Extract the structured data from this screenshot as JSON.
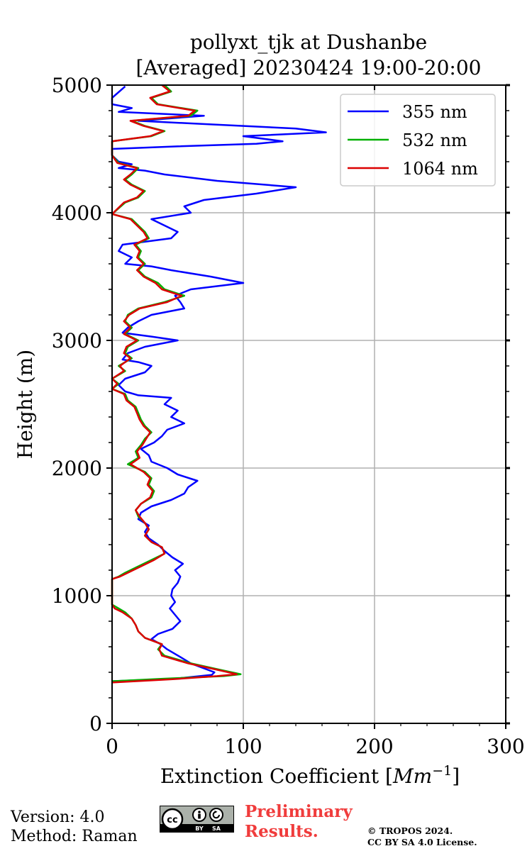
{
  "header": {
    "title_line1": "pollyxt_tjk at Dushanbe",
    "title_line2": "[Averaged] 20230424 19:00-20:00"
  },
  "footer": {
    "version": "Version: 4.0",
    "method": "Method: Raman",
    "preliminary_line1": "Preliminary",
    "preliminary_line2": "Results.",
    "copyright_line1": "© TROPOS 2024.",
    "copyright_line2": "CC BY SA 4.0 License.",
    "badge": {
      "cc": "cc",
      "by": "BY",
      "sa": "SA"
    }
  },
  "chart_data": {
    "type": "line",
    "title": "pollyxt_tjk at Dushanbe [Averaged] 20230424 19:00-20:00",
    "xlabel": "Extinction Coefficient",
    "xlabel_unit": "Mm",
    "xlabel_exp": "−1",
    "ylabel": "Height (m)",
    "xlim": [
      0,
      300
    ],
    "ylim": [
      0,
      5000
    ],
    "xticks": [
      0,
      100,
      200,
      300
    ],
    "yticks": [
      0,
      1000,
      2000,
      3000,
      4000,
      5000
    ],
    "grid": true,
    "legend_position": "top-right",
    "series": [
      {
        "name": "355 nm",
        "color": "#0000ff",
        "points": [
          [
            0,
            330
          ],
          [
            48,
            350
          ],
          [
            76,
            380
          ],
          [
            78,
            400
          ],
          [
            60,
            470
          ],
          [
            52,
            520
          ],
          [
            42,
            580
          ],
          [
            37,
            620
          ],
          [
            30,
            660
          ],
          [
            35,
            700
          ],
          [
            46,
            740
          ],
          [
            52,
            800
          ],
          [
            48,
            850
          ],
          [
            44,
            900
          ],
          [
            48,
            950
          ],
          [
            45,
            1000
          ],
          [
            46,
            1050
          ],
          [
            50,
            1100
          ],
          [
            52,
            1150
          ],
          [
            48,
            1200
          ],
          [
            54,
            1250
          ],
          [
            46,
            1300
          ],
          [
            40,
            1350
          ],
          [
            35,
            1400
          ],
          [
            28,
            1450
          ],
          [
            25,
            1500
          ],
          [
            28,
            1550
          ],
          [
            20,
            1600
          ],
          [
            22,
            1650
          ],
          [
            30,
            1700
          ],
          [
            45,
            1750
          ],
          [
            55,
            1800
          ],
          [
            58,
            1850
          ],
          [
            65,
            1900
          ],
          [
            50,
            1950
          ],
          [
            42,
            2000
          ],
          [
            30,
            2050
          ],
          [
            28,
            2100
          ],
          [
            22,
            2150
          ],
          [
            32,
            2200
          ],
          [
            38,
            2250
          ],
          [
            42,
            2300
          ],
          [
            55,
            2350
          ],
          [
            45,
            2400
          ],
          [
            50,
            2450
          ],
          [
            40,
            2500
          ],
          [
            45,
            2550
          ],
          [
            20,
            2570
          ],
          [
            10,
            2600
          ],
          [
            5,
            2650
          ],
          [
            10,
            2700
          ],
          [
            25,
            2750
          ],
          [
            30,
            2800
          ],
          [
            20,
            2830
          ],
          [
            8,
            2850
          ],
          [
            12,
            2900
          ],
          [
            25,
            2950
          ],
          [
            50,
            3000
          ],
          [
            30,
            3030
          ],
          [
            8,
            3060
          ],
          [
            12,
            3100
          ],
          [
            20,
            3150
          ],
          [
            30,
            3200
          ],
          [
            55,
            3250
          ],
          [
            52,
            3300
          ],
          [
            48,
            3350
          ],
          [
            60,
            3400
          ],
          [
            100,
            3450
          ],
          [
            75,
            3500
          ],
          [
            45,
            3550
          ],
          [
            30,
            3580
          ],
          [
            10,
            3600
          ],
          [
            15,
            3650
          ],
          [
            5,
            3700
          ],
          [
            8,
            3750
          ],
          [
            45,
            3800
          ],
          [
            50,
            3850
          ],
          [
            40,
            3900
          ],
          [
            30,
            3950
          ],
          [
            60,
            4000
          ],
          [
            55,
            4050
          ],
          [
            70,
            4100
          ],
          [
            110,
            4150
          ],
          [
            140,
            4200
          ],
          [
            80,
            4250
          ],
          [
            40,
            4300
          ],
          [
            25,
            4330
          ],
          [
            5,
            4350
          ],
          [
            15,
            4380
          ],
          [
            5,
            4400
          ],
          [
            0,
            4450
          ],
          [
            0,
            4500
          ],
          [
            50,
            4520
          ],
          [
            110,
            4540
          ],
          [
            130,
            4560
          ],
          [
            100,
            4600
          ],
          [
            163,
            4630
          ],
          [
            140,
            4660
          ],
          [
            60,
            4700
          ],
          [
            20,
            4720
          ],
          [
            70,
            4760
          ],
          [
            5,
            4790
          ],
          [
            15,
            4820
          ],
          [
            0,
            4850
          ],
          [
            0,
            4900
          ],
          [
            10,
            4990
          ]
        ]
      },
      {
        "name": "532 nm",
        "color": "#00b000",
        "points": [
          [
            0,
            330
          ],
          [
            40,
            350
          ],
          [
            85,
            370
          ],
          [
            98,
            385
          ],
          [
            82,
            420
          ],
          [
            60,
            470
          ],
          [
            40,
            530
          ],
          [
            35,
            580
          ],
          [
            38,
            620
          ],
          [
            25,
            670
          ],
          [
            20,
            720
          ],
          [
            18,
            770
          ],
          [
            15,
            820
          ],
          [
            10,
            870
          ],
          [
            5,
            900
          ],
          [
            0,
            930
          ],
          [
            0,
            1000
          ],
          [
            0,
            1130
          ],
          [
            5,
            1150
          ],
          [
            10,
            1180
          ],
          [
            20,
            1230
          ],
          [
            30,
            1280
          ],
          [
            40,
            1330
          ],
          [
            38,
            1380
          ],
          [
            30,
            1420
          ],
          [
            25,
            1470
          ],
          [
            28,
            1520
          ],
          [
            25,
            1570
          ],
          [
            20,
            1620
          ],
          [
            18,
            1670
          ],
          [
            22,
            1720
          ],
          [
            30,
            1770
          ],
          [
            32,
            1820
          ],
          [
            28,
            1870
          ],
          [
            30,
            1920
          ],
          [
            25,
            1970
          ],
          [
            12,
            2030
          ],
          [
            20,
            2080
          ],
          [
            18,
            2130
          ],
          [
            22,
            2180
          ],
          [
            25,
            2230
          ],
          [
            30,
            2280
          ],
          [
            25,
            2330
          ],
          [
            22,
            2380
          ],
          [
            20,
            2430
          ],
          [
            18,
            2480
          ],
          [
            12,
            2530
          ],
          [
            10,
            2580
          ],
          [
            0,
            2620
          ],
          [
            5,
            2660
          ],
          [
            0,
            2700
          ],
          [
            10,
            2760
          ],
          [
            5,
            2800
          ],
          [
            15,
            2860
          ],
          [
            10,
            2900
          ],
          [
            12,
            2950
          ],
          [
            20,
            3000
          ],
          [
            10,
            3050
          ],
          [
            15,
            3100
          ],
          [
            10,
            3150
          ],
          [
            12,
            3200
          ],
          [
            20,
            3250
          ],
          [
            40,
            3300
          ],
          [
            55,
            3350
          ],
          [
            40,
            3400
          ],
          [
            35,
            3450
          ],
          [
            25,
            3500
          ],
          [
            20,
            3550
          ],
          [
            25,
            3600
          ],
          [
            20,
            3650
          ],
          [
            22,
            3700
          ],
          [
            18,
            3750
          ],
          [
            28,
            3800
          ],
          [
            25,
            3850
          ],
          [
            20,
            3900
          ],
          [
            15,
            3950
          ],
          [
            0,
            3990
          ],
          [
            10,
            4080
          ],
          [
            20,
            4120
          ],
          [
            25,
            4170
          ],
          [
            15,
            4220
          ],
          [
            10,
            4260
          ],
          [
            15,
            4300
          ],
          [
            20,
            4350
          ],
          [
            5,
            4390
          ],
          [
            0,
            4450
          ],
          [
            0,
            4560
          ],
          [
            30,
            4600
          ],
          [
            40,
            4640
          ],
          [
            25,
            4680
          ],
          [
            15,
            4720
          ],
          [
            60,
            4760
          ],
          [
            65,
            4800
          ],
          [
            35,
            4850
          ],
          [
            30,
            4900
          ],
          [
            45,
            4950
          ],
          [
            40,
            5000
          ]
        ]
      },
      {
        "name": "1064 nm",
        "color": "#dc0000",
        "points": [
          [
            0,
            320
          ],
          [
            45,
            345
          ],
          [
            80,
            370
          ],
          [
            95,
            385
          ],
          [
            80,
            420
          ],
          [
            58,
            470
          ],
          [
            38,
            530
          ],
          [
            36,
            580
          ],
          [
            38,
            620
          ],
          [
            25,
            670
          ],
          [
            20,
            720
          ],
          [
            18,
            770
          ],
          [
            15,
            820
          ],
          [
            8,
            870
          ],
          [
            2,
            900
          ],
          [
            0,
            930
          ],
          [
            0,
            1000
          ],
          [
            0,
            1130
          ],
          [
            6,
            1150
          ],
          [
            12,
            1180
          ],
          [
            22,
            1230
          ],
          [
            32,
            1280
          ],
          [
            40,
            1330
          ],
          [
            38,
            1380
          ],
          [
            30,
            1420
          ],
          [
            25,
            1470
          ],
          [
            28,
            1520
          ],
          [
            25,
            1570
          ],
          [
            21,
            1620
          ],
          [
            18,
            1670
          ],
          [
            22,
            1720
          ],
          [
            29,
            1770
          ],
          [
            31,
            1820
          ],
          [
            27,
            1870
          ],
          [
            29,
            1920
          ],
          [
            24,
            1970
          ],
          [
            14,
            2030
          ],
          [
            21,
            2080
          ],
          [
            19,
            2130
          ],
          [
            23,
            2180
          ],
          [
            26,
            2230
          ],
          [
            29,
            2280
          ],
          [
            24,
            2330
          ],
          [
            21,
            2380
          ],
          [
            19,
            2430
          ],
          [
            17,
            2480
          ],
          [
            11,
            2530
          ],
          [
            9,
            2580
          ],
          [
            0,
            2620
          ],
          [
            4,
            2660
          ],
          [
            0,
            2700
          ],
          [
            9,
            2760
          ],
          [
            6,
            2800
          ],
          [
            14,
            2860
          ],
          [
            9,
            2900
          ],
          [
            11,
            2950
          ],
          [
            19,
            3000
          ],
          [
            9,
            3050
          ],
          [
            14,
            3100
          ],
          [
            9,
            3150
          ],
          [
            13,
            3200
          ],
          [
            21,
            3250
          ],
          [
            42,
            3300
          ],
          [
            53,
            3350
          ],
          [
            38,
            3400
          ],
          [
            33,
            3450
          ],
          [
            24,
            3500
          ],
          [
            19,
            3550
          ],
          [
            24,
            3600
          ],
          [
            19,
            3650
          ],
          [
            21,
            3700
          ],
          [
            17,
            3750
          ],
          [
            27,
            3800
          ],
          [
            24,
            3850
          ],
          [
            19,
            3900
          ],
          [
            14,
            3950
          ],
          [
            0,
            3990
          ],
          [
            9,
            4080
          ],
          [
            19,
            4120
          ],
          [
            24,
            4170
          ],
          [
            14,
            4220
          ],
          [
            9,
            4260
          ],
          [
            14,
            4300
          ],
          [
            19,
            4350
          ],
          [
            4,
            4390
          ],
          [
            0,
            4450
          ],
          [
            0,
            4560
          ],
          [
            29,
            4600
          ],
          [
            39,
            4640
          ],
          [
            24,
            4680
          ],
          [
            14,
            4720
          ],
          [
            58,
            4760
          ],
          [
            63,
            4800
          ],
          [
            34,
            4850
          ],
          [
            29,
            4900
          ],
          [
            44,
            4950
          ],
          [
            38,
            5000
          ]
        ]
      }
    ]
  }
}
